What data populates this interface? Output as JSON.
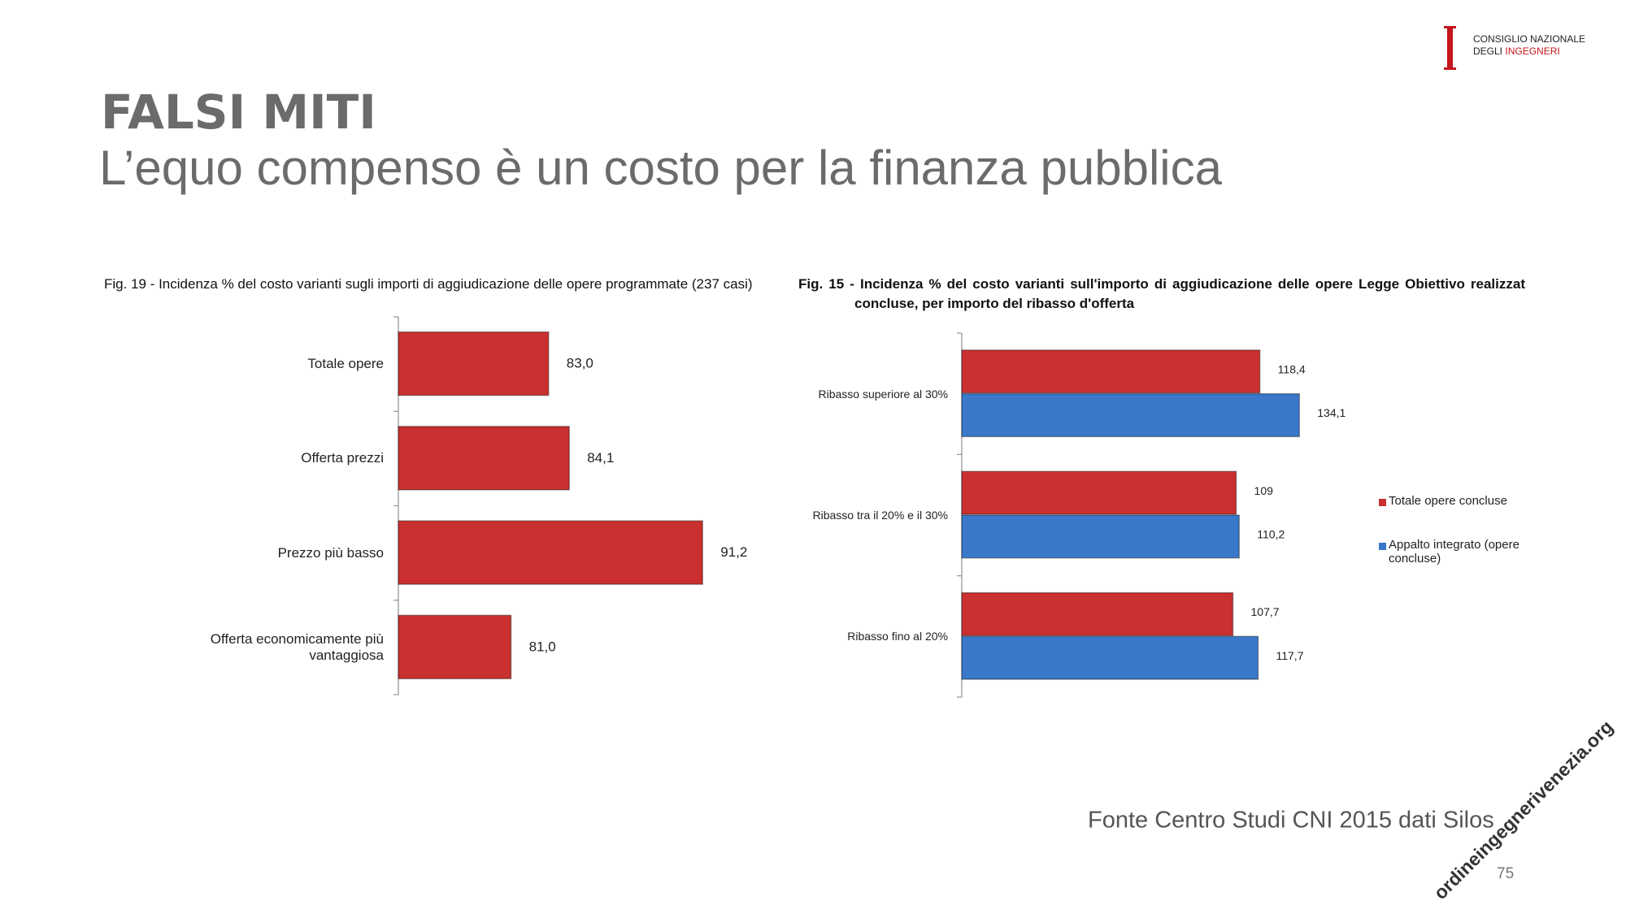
{
  "logo": {
    "line1": "CONSIGLIO NAZIONALE",
    "line2a": "DEGLI",
    "line2b": "INGEGNERI"
  },
  "header": {
    "title": "FALSI MITI",
    "subtitle": "L’equo compenso è un costo per la finanza pubblica"
  },
  "chart_data": [
    {
      "type": "bar",
      "orientation": "horizontal",
      "title": "Fig. 19  - Incidenza % del costo varianti sugli importi di aggiudicazione delle opere programmate (237 casi)",
      "categories": [
        "Totale opere",
        "Offerta prezzi",
        "Prezzo più basso",
        "Offerta economicamente più vantaggiosa"
      ],
      "values": [
        83.0,
        84.1,
        91.2,
        81.0
      ],
      "value_labels": [
        "83,0",
        "84,1",
        "91,2",
        "81,0"
      ],
      "color": "#c9302f",
      "xlim": [
        75,
        95
      ]
    },
    {
      "type": "bar",
      "orientation": "horizontal",
      "title": "Fig. 15 - Incidenza % del costo varianti sull'importo di aggiudicazione delle opere Legge Obiettivo realizzat concluse, per importo del ribasso d'offerta",
      "categories": [
        "Ribasso superiore al 30%",
        "Ribasso tra il 20% e il 30%",
        "Ribasso fino al 20%"
      ],
      "series": [
        {
          "name": "Totale opere concluse",
          "color": "#c9302f",
          "values": [
            118.4,
            109,
            107.7
          ],
          "value_labels": [
            "118,4",
            "109",
            "107,7"
          ]
        },
        {
          "name": "Appalto integrato (opere concluse)",
          "color": "#3a78c9",
          "values": [
            134.1,
            110.2,
            117.7
          ],
          "value_labels": [
            "134,1",
            "110,2",
            "117,7"
          ]
        }
      ],
      "legend": "right",
      "xlim": [
        0,
        155
      ]
    }
  ],
  "footer": {
    "source": "Fonte Centro Studi CNI 2015 dati Silos",
    "page": "75",
    "watermark": "ordineingegnerivenezia.org"
  }
}
